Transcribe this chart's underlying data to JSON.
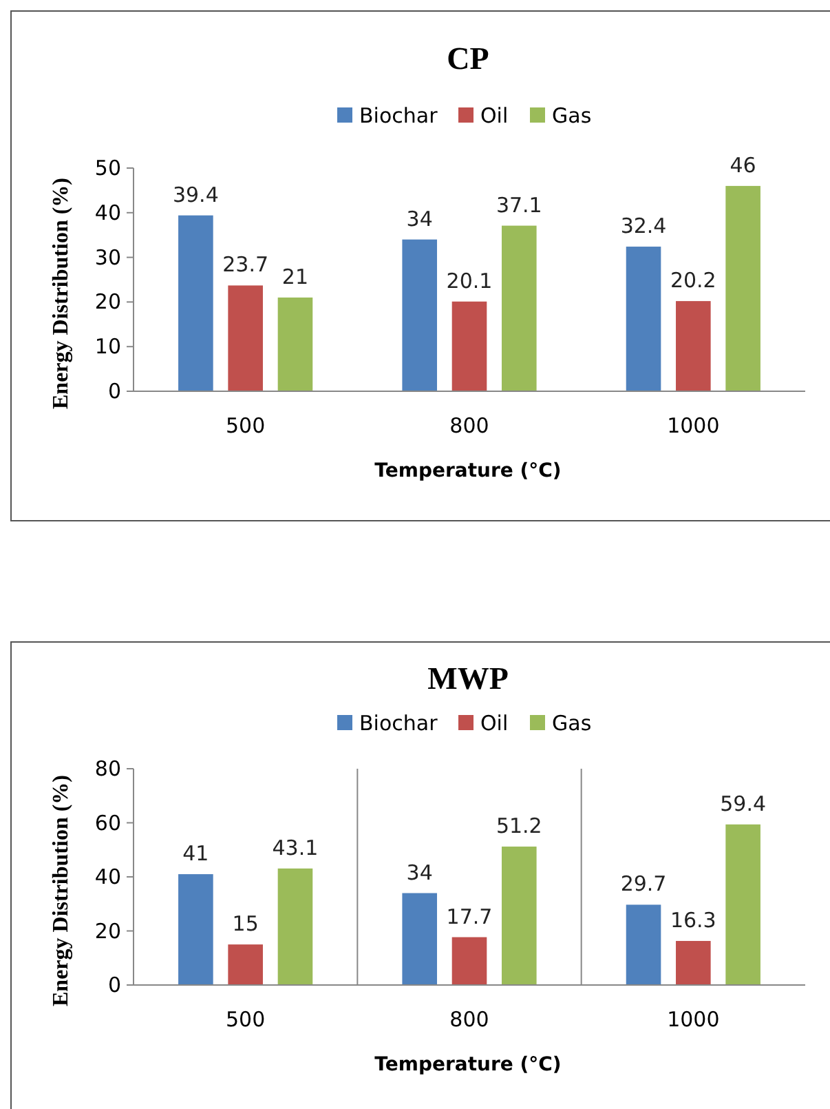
{
  "chart_data": [
    {
      "type": "bar",
      "title": "CP",
      "xlabel": "Temperature (°C)",
      "ylabel": "Energy Distribution  (%)",
      "categories": [
        "500",
        "800",
        "1000"
      ],
      "series": [
        {
          "name": "Biochar",
          "color": "#4f81bd",
          "values": [
            39.4,
            34,
            32.4
          ]
        },
        {
          "name": "Oil",
          "color": "#c0504d",
          "values": [
            23.7,
            20.1,
            20.2
          ]
        },
        {
          "name": "Gas",
          "color": "#9bbb59",
          "values": [
            21,
            37.1,
            46
          ]
        }
      ],
      "ylim": [
        0,
        50
      ],
      "yticks": [
        0,
        10,
        20,
        30,
        40,
        50
      ],
      "grid": false,
      "legend": "top",
      "data_labels": true
    },
    {
      "type": "bar",
      "title": "MWP",
      "xlabel": "Temperature (°C)",
      "ylabel": "Energy Distribution  (%)",
      "categories": [
        "500",
        "800",
        "1000"
      ],
      "series": [
        {
          "name": "Biochar",
          "color": "#4f81bd",
          "values": [
            41,
            34,
            29.7
          ]
        },
        {
          "name": "Oil",
          "color": "#c0504d",
          "values": [
            15,
            17.7,
            16.3
          ]
        },
        {
          "name": "Gas",
          "color": "#9bbb59",
          "values": [
            43.1,
            51.2,
            59.4
          ]
        }
      ],
      "ylim": [
        0,
        80
      ],
      "yticks": [
        0,
        20,
        40,
        60,
        80
      ],
      "grid": "x",
      "legend": "top",
      "data_labels": true
    }
  ]
}
